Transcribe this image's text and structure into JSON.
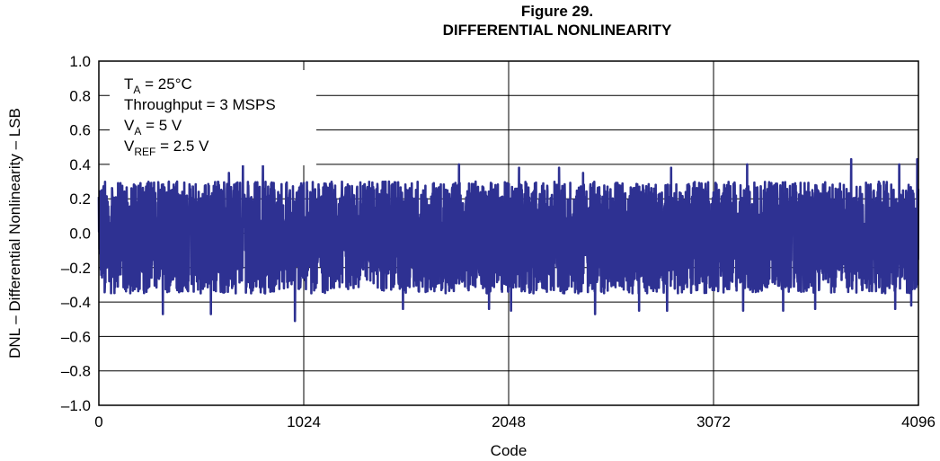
{
  "figure_number": "Figure 29.",
  "chart_data": {
    "type": "line",
    "title": "DIFFERENTIAL NONLINEARITY",
    "xlabel": "Code",
    "ylabel": "DNL – Differential Nonlinearity – LSB",
    "xlim": [
      0,
      4096
    ],
    "ylim": [
      -1.0,
      1.0
    ],
    "x_ticks": [
      0,
      1024,
      2048,
      3072,
      4096
    ],
    "x_tick_labels": [
      "0",
      "1024",
      "2048",
      "3072",
      "4096"
    ],
    "y_ticks": [
      1.0,
      0.8,
      0.6,
      0.4,
      0.2,
      0.0,
      -0.2,
      -0.4,
      -0.6,
      -0.8,
      -1.0
    ],
    "y_tick_labels": [
      "1.0",
      "0.8",
      "0.6",
      "0.4",
      "0.2",
      "0.0",
      "–0.2",
      "–0.4",
      "–0.6",
      "–0.8",
      "–1.0"
    ],
    "grid": true,
    "series": [
      {
        "color": "#2e3192",
        "pattern": "dense noise band, typical range -0.35 to +0.30 LSB",
        "typical_min": -0.35,
        "typical_max": 0.3,
        "peaks": [
          [
            350,
            0.3
          ],
          [
            650,
            0.35
          ],
          [
            720,
            0.4
          ],
          [
            820,
            0.4
          ],
          [
            1450,
            0.3
          ],
          [
            1800,
            0.4
          ],
          [
            2100,
            0.38
          ],
          [
            2300,
            0.38
          ],
          [
            2420,
            0.35
          ],
          [
            2860,
            0.38
          ],
          [
            3240,
            0.4
          ],
          [
            3420,
            0.42
          ],
          [
            3580,
            0.42
          ],
          [
            3760,
            0.43
          ],
          [
            4000,
            0.4
          ],
          [
            4090,
            0.43
          ]
        ],
        "troughs": [
          [
            320,
            -0.47
          ],
          [
            560,
            -0.47
          ],
          [
            980,
            -0.45
          ],
          [
            980,
            -0.51
          ],
          [
            1520,
            -0.44
          ],
          [
            1950,
            -0.44
          ],
          [
            2060,
            -0.45
          ],
          [
            2480,
            -0.47
          ],
          [
            2700,
            -0.45
          ],
          [
            2840,
            -0.45
          ],
          [
            3220,
            -0.45
          ],
          [
            3420,
            -0.45
          ],
          [
            3580,
            -0.44
          ],
          [
            3980,
            -0.44
          ],
          [
            4060,
            -0.42
          ]
        ]
      }
    ]
  },
  "annotation": {
    "lines": [
      {
        "main": "T",
        "sub": "A",
        "rest": " = 25°C"
      },
      {
        "main": "Throughput = 3 MSPS",
        "sub": "",
        "rest": ""
      },
      {
        "main": "V",
        "sub": "A",
        "rest": " = 5 V"
      },
      {
        "main": "V",
        "sub": "REF",
        "rest": " = 2.5 V"
      }
    ]
  }
}
